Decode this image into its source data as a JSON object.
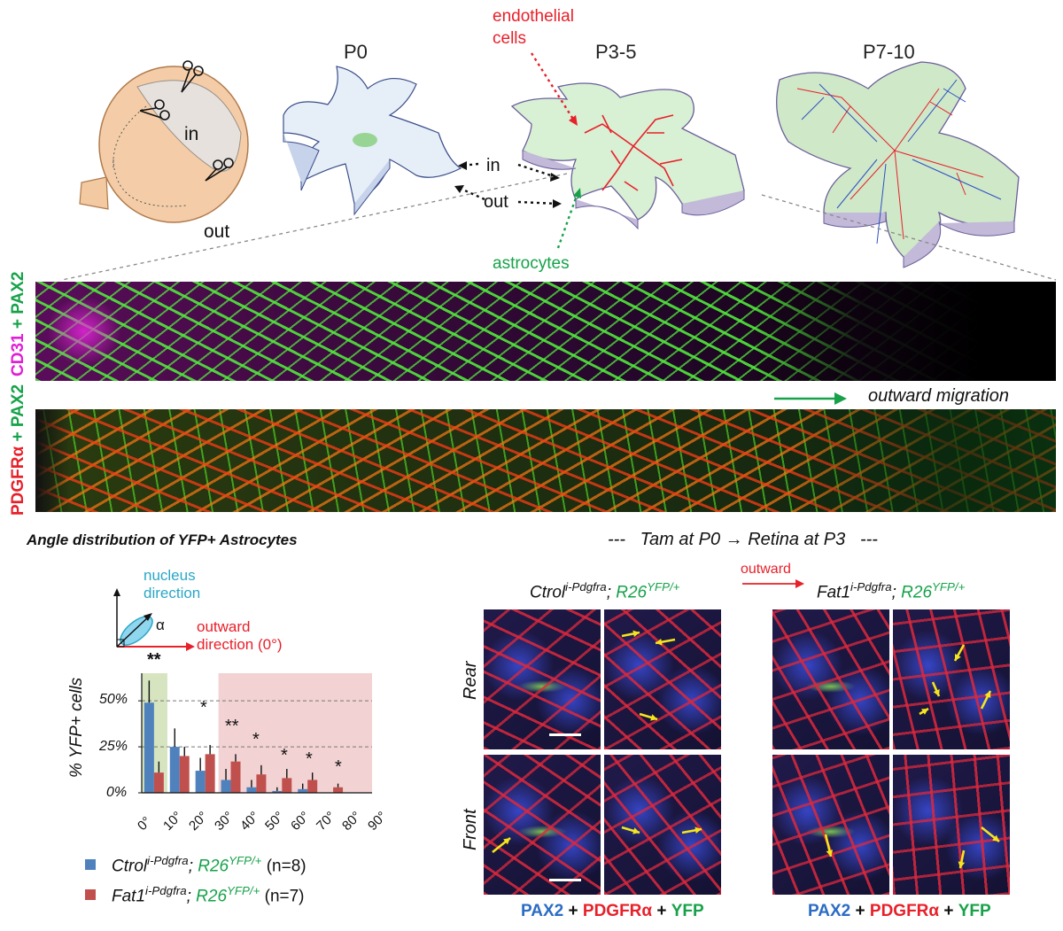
{
  "diagram": {
    "eye": {
      "in_label": "in",
      "out_label": "out"
    },
    "stages": [
      "P0",
      "P3-5",
      "P7-10"
    ],
    "annotations": {
      "endothelial_cells": "endothelial cells",
      "astrocytes": "astrocytes",
      "in": "in",
      "out": "out"
    }
  },
  "strips": {
    "top_label": {
      "part1": "CD31",
      "part2": "+ PAX2"
    },
    "bottom_label": {
      "part1": "PDGFRα",
      "part2": "+ PAX2"
    },
    "migration_label": "outward migration"
  },
  "chart": {
    "title": "Angle distribution of YFP+ Astrocytes",
    "inset": {
      "nucleus": "nucleus direction",
      "alpha": "α",
      "outward": "outward direction (0°)",
      "sig": "**"
    },
    "ylabel": "% YFP+ cells",
    "yticks": [
      "50%",
      "25%",
      "0%"
    ],
    "xticks": [
      "0°",
      "10°",
      "20°",
      "30°",
      "40°",
      "50°",
      "60°",
      "70°",
      "80°",
      "90°"
    ],
    "stars": [
      "*",
      "**",
      "*",
      "*",
      "*",
      "*"
    ],
    "legend": [
      {
        "name_main": "Ctrol",
        "name_sup": "i-Pdgfra",
        "mid": "; ",
        "gene": "R26",
        "gene_sup": "YFP/+",
        "n": "(n=8)"
      },
      {
        "name_main": "Fat1",
        "name_sup": "i-Pdgfra",
        "mid": "; ",
        "gene": "R26",
        "gene_sup": "YFP/+",
        "n": "(n=7)"
      }
    ]
  },
  "chart_data": {
    "type": "bar",
    "categories": [
      "0-10",
      "10-20",
      "20-30",
      "30-40",
      "40-50",
      "50-60",
      "60-70",
      "70-80",
      "80-90"
    ],
    "series": [
      {
        "values": [
          49,
          25,
          12,
          7,
          3,
          1,
          2,
          0,
          0
        ],
        "errors": [
          12,
          10,
          7,
          6,
          4,
          2,
          3,
          0,
          0
        ],
        "color": "#4f81bd"
      },
      {
        "values": [
          11,
          20,
          21,
          17,
          10,
          8,
          7,
          3,
          0
        ],
        "errors": [
          6,
          5,
          5,
          4,
          5,
          5,
          4,
          2,
          0
        ],
        "color": "#c0504d"
      }
    ],
    "ylim": [
      0,
      65
    ],
    "xlim": [
      0,
      90
    ],
    "grid_lines": [
      25,
      50
    ],
    "shaded_ranges": [
      {
        "from": 0,
        "to": 10,
        "color": "#d6e4bf"
      },
      {
        "from": 30,
        "to": 90,
        "color": "#f2d2d2"
      }
    ]
  },
  "micro": {
    "header": {
      "left_dash": "---",
      "text_a": "Tam at P0",
      "arrow": "→",
      "text_b": "Retina at P3",
      "right_dash": "---"
    },
    "ctrl_label": {
      "main": "Ctrol",
      "sup": "i-Pdgfra",
      "mid": "; ",
      "gene": "R26",
      "gene_sup": "YFP/+"
    },
    "fat_label": {
      "main": "Fat1",
      "sup": "i-Pdgfra",
      "mid": "; ",
      "gene": "R26",
      "gene_sup": "YFP/+"
    },
    "outward": "outward",
    "row_rear": "Rear",
    "row_front": "Front",
    "footer": {
      "pax2": "PAX2",
      "plus1": " + ",
      "pdgfr": "PDGFRα",
      "plus2": " + ",
      "yfp": "YFP"
    }
  },
  "colors": {
    "red": "#e8202a",
    "green": "#17a24a",
    "blue": "#2b6cc4",
    "magenta": "#e01fd6",
    "teal": "#2aa7c6"
  }
}
